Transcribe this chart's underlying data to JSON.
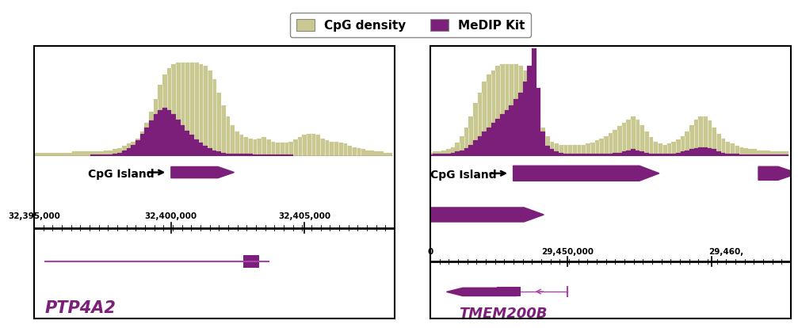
{
  "legend_items": [
    "CpG density",
    "MeDIP Kit"
  ],
  "cpg_color": "#C8C890",
  "medip_color": "#7B1F7A",
  "gene_color_light": "#AA44AA",
  "background_color": "#ffffff",
  "panel1": {
    "gene_name": "PTP4A2",
    "axis_label_left": "32,395,000",
    "axis_label_mid": "32,400,000",
    "axis_label_right": "32,405,000",
    "cpg_island_label": "CpG Island",
    "cpg_bars": [
      0.03,
      0.03,
      0.03,
      0.03,
      0.03,
      0.03,
      0.03,
      0.03,
      0.03,
      0.04,
      0.04,
      0.04,
      0.04,
      0.04,
      0.04,
      0.04,
      0.05,
      0.05,
      0.06,
      0.07,
      0.09,
      0.11,
      0.13,
      0.16,
      0.22,
      0.3,
      0.4,
      0.52,
      0.65,
      0.74,
      0.8,
      0.84,
      0.85,
      0.85,
      0.85,
      0.85,
      0.85,
      0.84,
      0.82,
      0.78,
      0.7,
      0.58,
      0.46,
      0.36,
      0.28,
      0.22,
      0.19,
      0.17,
      0.16,
      0.15,
      0.16,
      0.17,
      0.15,
      0.13,
      0.12,
      0.12,
      0.12,
      0.13,
      0.15,
      0.17,
      0.19,
      0.2,
      0.2,
      0.19,
      0.16,
      0.14,
      0.13,
      0.13,
      0.12,
      0.11,
      0.09,
      0.08,
      0.07,
      0.06,
      0.05,
      0.05,
      0.04,
      0.04,
      0.03,
      0.03
    ],
    "medip_bars": [
      0.0,
      0.0,
      0.0,
      0.0,
      0.0,
      0.0,
      0.0,
      0.0,
      0.0,
      0.0,
      0.0,
      0.0,
      0.0,
      0.01,
      0.01,
      0.01,
      0.01,
      0.01,
      0.02,
      0.03,
      0.05,
      0.07,
      0.1,
      0.14,
      0.2,
      0.26,
      0.32,
      0.38,
      0.42,
      0.44,
      0.42,
      0.38,
      0.33,
      0.28,
      0.23,
      0.19,
      0.15,
      0.12,
      0.09,
      0.07,
      0.05,
      0.04,
      0.03,
      0.02,
      0.02,
      0.02,
      0.02,
      0.02,
      0.02,
      0.01,
      0.01,
      0.01,
      0.01,
      0.01,
      0.01,
      0.01,
      0.01,
      0.01,
      0.0,
      0.0,
      0.0,
      0.0,
      0.0,
      0.0,
      0.0,
      0.0,
      0.0,
      0.0,
      0.0,
      0.0,
      0.0,
      0.0,
      0.0,
      0.0,
      0.0,
      0.0,
      0.0,
      0.0,
      0.0,
      0.0
    ],
    "small_medip_spikes": [
      13,
      15,
      17,
      20,
      22,
      24
    ]
  },
  "panel2": {
    "gene_name": "TMEM200B",
    "axis_label_left": "0",
    "axis_label_mid": "29,450,000",
    "axis_label_right": "29,460,",
    "cpg_island_label": "CpG Island",
    "cpg_bars": [
      0.03,
      0.04,
      0.04,
      0.05,
      0.06,
      0.08,
      0.12,
      0.18,
      0.26,
      0.36,
      0.48,
      0.58,
      0.68,
      0.74,
      0.78,
      0.82,
      0.84,
      0.84,
      0.84,
      0.84,
      0.82,
      0.78,
      0.68,
      0.52,
      0.38,
      0.26,
      0.18,
      0.13,
      0.11,
      0.1,
      0.1,
      0.1,
      0.1,
      0.1,
      0.1,
      0.11,
      0.12,
      0.14,
      0.16,
      0.18,
      0.21,
      0.24,
      0.27,
      0.3,
      0.33,
      0.36,
      0.33,
      0.28,
      0.22,
      0.17,
      0.13,
      0.11,
      0.1,
      0.11,
      0.13,
      0.15,
      0.18,
      0.22,
      0.28,
      0.33,
      0.36,
      0.36,
      0.32,
      0.26,
      0.2,
      0.16,
      0.13,
      0.11,
      0.09,
      0.08,
      0.07,
      0.06,
      0.06,
      0.05,
      0.05,
      0.05,
      0.04,
      0.04,
      0.04,
      0.04
    ],
    "medip_bars": [
      0.01,
      0.02,
      0.02,
      0.02,
      0.02,
      0.03,
      0.04,
      0.05,
      0.07,
      0.1,
      0.14,
      0.18,
      0.22,
      0.26,
      0.3,
      0.34,
      0.38,
      0.42,
      0.46,
      0.52,
      0.58,
      0.68,
      0.82,
      0.98,
      0.62,
      0.22,
      0.09,
      0.06,
      0.04,
      0.03,
      0.02,
      0.02,
      0.02,
      0.02,
      0.02,
      0.02,
      0.02,
      0.02,
      0.02,
      0.02,
      0.02,
      0.03,
      0.03,
      0.04,
      0.05,
      0.06,
      0.05,
      0.04,
      0.03,
      0.02,
      0.02,
      0.02,
      0.02,
      0.02,
      0.02,
      0.03,
      0.04,
      0.05,
      0.06,
      0.07,
      0.08,
      0.08,
      0.07,
      0.06,
      0.04,
      0.03,
      0.02,
      0.02,
      0.02,
      0.01,
      0.01,
      0.01,
      0.01,
      0.01,
      0.01,
      0.01,
      0.01,
      0.01,
      0.01,
      0.01
    ]
  }
}
